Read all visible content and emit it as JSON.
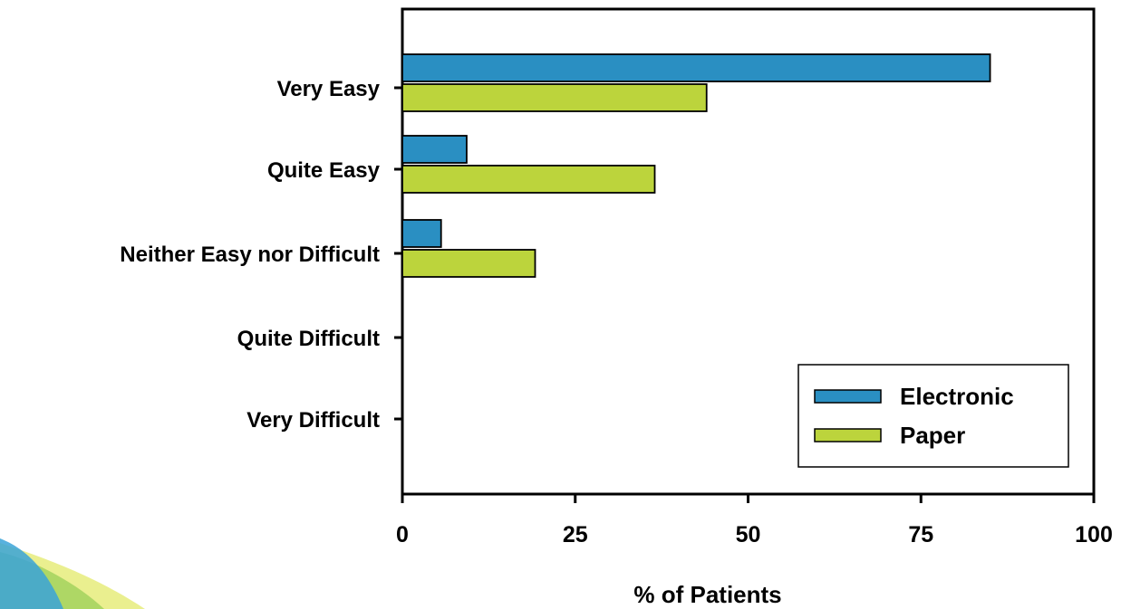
{
  "colors": {
    "electronic": "#2a8fc2",
    "paper": "#bcd43c",
    "axis": "#000000",
    "decor_blue": "#3aa3d8",
    "decor_green": "#9fd15a",
    "decor_yellow": "#e3ea6a"
  },
  "chart_data": {
    "type": "bar",
    "orientation": "horizontal",
    "categories": [
      "Very Easy",
      "Quite Easy",
      "Neither Easy nor Difficult",
      "Quite Difficult",
      "Very Difficult"
    ],
    "series": [
      {
        "name": "Electronic",
        "values": [
          85,
          9.3,
          5.6,
          0,
          0
        ]
      },
      {
        "name": "Paper",
        "values": [
          44,
          36.5,
          19.2,
          0,
          0
        ]
      }
    ],
    "xticks": [
      "0",
      "25",
      "50",
      "75",
      "100"
    ],
    "xlim": [
      0,
      100
    ],
    "xlabel": "% of Patients",
    "ylabel": "",
    "title": "",
    "legend_position": "bottom-right",
    "grid": false
  }
}
